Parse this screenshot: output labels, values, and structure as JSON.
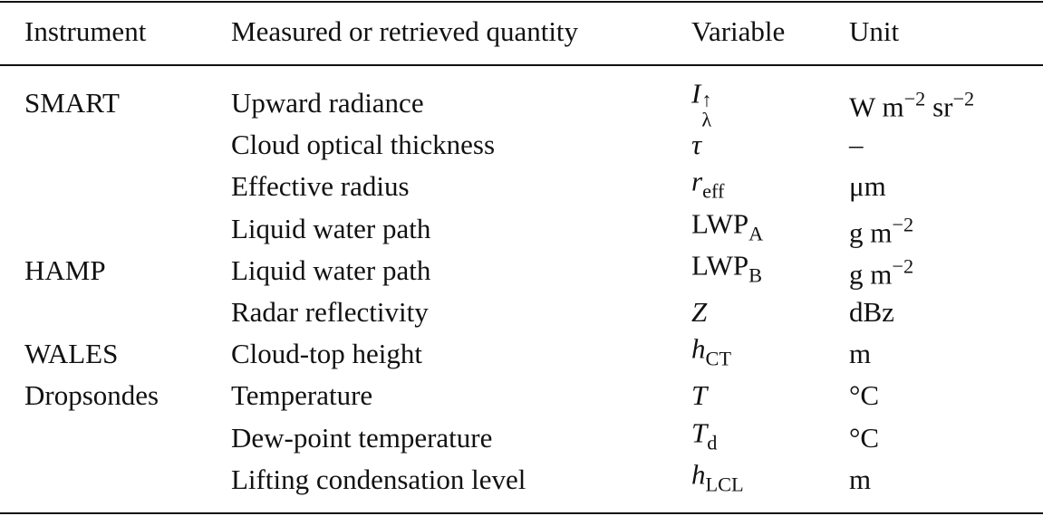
{
  "table": {
    "header": [
      "Instrument",
      "Measured or retrieved quantity",
      "Variable",
      "Unit"
    ],
    "groups": [
      {
        "instrument": "SMART",
        "rows": [
          {
            "quantity": "Upward radiance",
            "variable": {
              "base": "I",
              "italic": true,
              "sup": "↑",
              "sub": "λ"
            },
            "unit": [
              {
                "text": "W m"
              },
              {
                "sup": "−2"
              },
              {
                "text": " sr"
              },
              {
                "sup": "−2"
              }
            ]
          },
          {
            "quantity": "Cloud optical thickness",
            "variable": {
              "base": "τ",
              "italic": true
            },
            "unit": [
              {
                "text": "–"
              }
            ]
          },
          {
            "quantity": "Effective radius",
            "variable": {
              "base": "r",
              "italic": true,
              "sub": "eff"
            },
            "unit": [
              {
                "text": "μm"
              }
            ]
          },
          {
            "quantity": "Liquid water path",
            "variable": {
              "base": "LWP",
              "italic": false,
              "sub": "A"
            },
            "unit": [
              {
                "text": "g m"
              },
              {
                "sup": "−2"
              }
            ]
          }
        ]
      },
      {
        "instrument": "HAMP",
        "rows": [
          {
            "quantity": "Liquid water path",
            "variable": {
              "base": "LWP",
              "italic": false,
              "sub": "B"
            },
            "unit": [
              {
                "text": "g m"
              },
              {
                "sup": "−2"
              }
            ]
          },
          {
            "quantity": "Radar reflectivity",
            "variable": {
              "base": "Z",
              "italic": true
            },
            "unit": [
              {
                "text": "dBz"
              }
            ]
          }
        ]
      },
      {
        "instrument": "WALES",
        "rows": [
          {
            "quantity": "Cloud-top height",
            "variable": {
              "base": "h",
              "italic": true,
              "sub": "CT"
            },
            "unit": [
              {
                "text": "m"
              }
            ]
          }
        ]
      },
      {
        "instrument": "Dropsondes",
        "rows": [
          {
            "quantity": "Temperature",
            "variable": {
              "base": "T",
              "italic": true
            },
            "unit": [
              {
                "text": "°C"
              }
            ]
          },
          {
            "quantity": "Dew-point temperature",
            "variable": {
              "base": "T",
              "italic": true,
              "sub": "d"
            },
            "unit": [
              {
                "text": "°C"
              }
            ]
          },
          {
            "quantity": "Lifting condensation level",
            "variable": {
              "base": "h",
              "italic": true,
              "sub": "LCL"
            },
            "unit": [
              {
                "text": "m"
              }
            ]
          }
        ]
      }
    ]
  }
}
